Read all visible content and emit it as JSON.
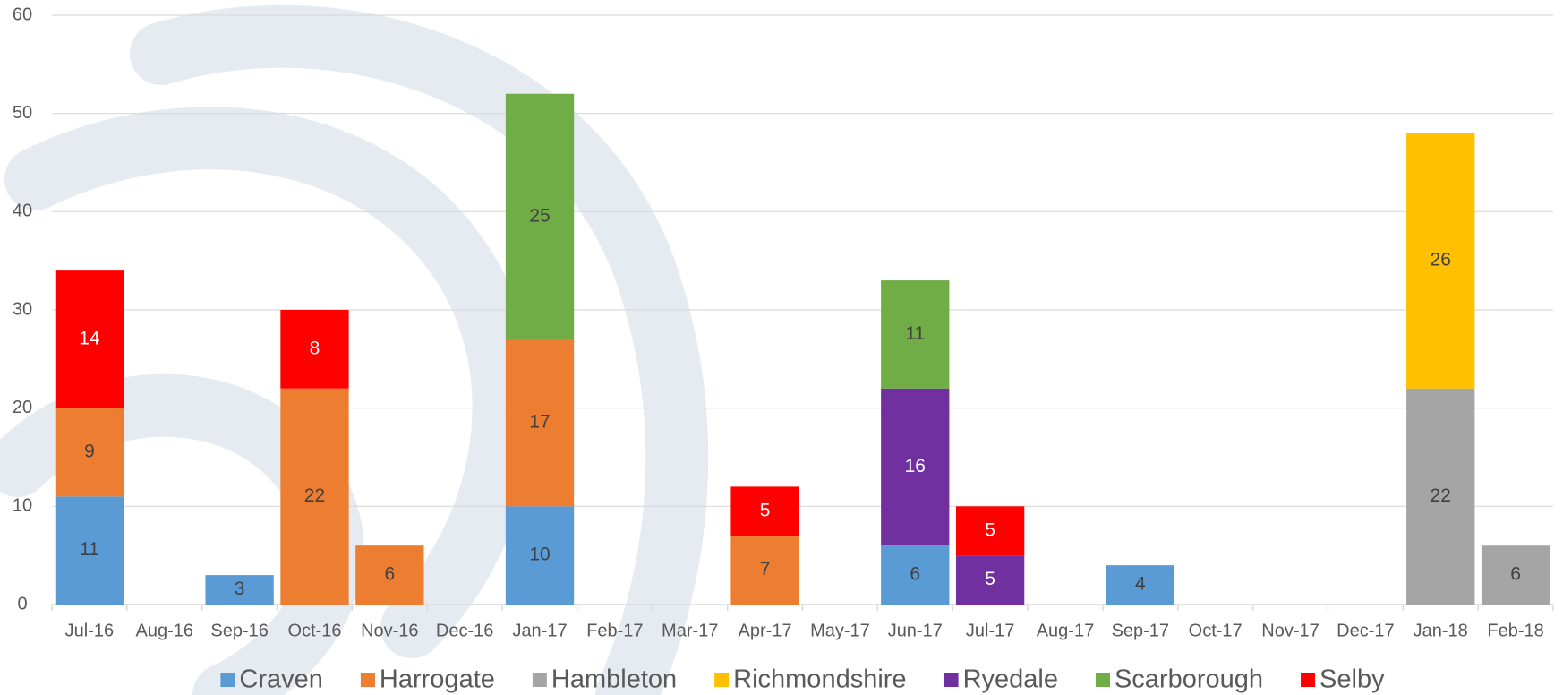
{
  "chart_data": {
    "type": "stacked_bar",
    "categories": [
      "Jul-16",
      "Aug-16",
      "Sep-16",
      "Oct-16",
      "Nov-16",
      "Dec-16",
      "Jan-17",
      "Feb-17",
      "Mar-17",
      "Apr-17",
      "May-17",
      "Jun-17",
      "Jul-17",
      "Aug-17",
      "Sep-17",
      "Oct-17",
      "Nov-17",
      "Dec-17",
      "Jan-18",
      "Feb-18"
    ],
    "series": [
      {
        "name": "Craven",
        "color": "#5b9bd5",
        "label_color": "#404040",
        "values": [
          11,
          null,
          3,
          null,
          null,
          null,
          10,
          null,
          null,
          null,
          null,
          6,
          null,
          null,
          4,
          null,
          null,
          null,
          null,
          null
        ]
      },
      {
        "name": "Harrogate",
        "color": "#ed7d31",
        "label_color": "#404040",
        "values": [
          9,
          null,
          null,
          22,
          6,
          null,
          17,
          null,
          null,
          7,
          null,
          null,
          null,
          null,
          null,
          null,
          null,
          null,
          null,
          null
        ]
      },
      {
        "name": "Hambleton",
        "color": "#a5a5a5",
        "label_color": "#404040",
        "values": [
          null,
          null,
          null,
          null,
          null,
          null,
          null,
          null,
          null,
          null,
          null,
          null,
          null,
          null,
          null,
          null,
          null,
          null,
          22,
          6
        ]
      },
      {
        "name": "Richmondshire",
        "color": "#ffc000",
        "label_color": "#404040",
        "values": [
          null,
          null,
          null,
          null,
          null,
          null,
          null,
          null,
          null,
          null,
          null,
          null,
          null,
          null,
          null,
          null,
          null,
          null,
          26,
          null
        ]
      },
      {
        "name": "Ryedale",
        "color": "#7030a0",
        "label_color": "#ffffff",
        "values": [
          null,
          null,
          null,
          null,
          null,
          null,
          null,
          null,
          null,
          null,
          null,
          16,
          5,
          null,
          null,
          null,
          null,
          null,
          null,
          null
        ]
      },
      {
        "name": "Scarborough",
        "color": "#70ad47",
        "label_color": "#404040",
        "values": [
          null,
          null,
          null,
          null,
          null,
          null,
          25,
          null,
          null,
          null,
          null,
          11,
          null,
          null,
          null,
          null,
          null,
          null,
          null,
          null
        ]
      },
      {
        "name": "Selby",
        "color": "#ff0000",
        "label_color": "#ffffff",
        "values": [
          14,
          null,
          null,
          8,
          null,
          null,
          null,
          null,
          null,
          5,
          null,
          null,
          5,
          null,
          null,
          null,
          null,
          null,
          null,
          null
        ]
      }
    ],
    "ylim": [
      0,
      60
    ],
    "yticks": [
      0,
      10,
      20,
      30,
      40,
      50,
      60
    ],
    "grid": true,
    "legend": "bottom"
  }
}
